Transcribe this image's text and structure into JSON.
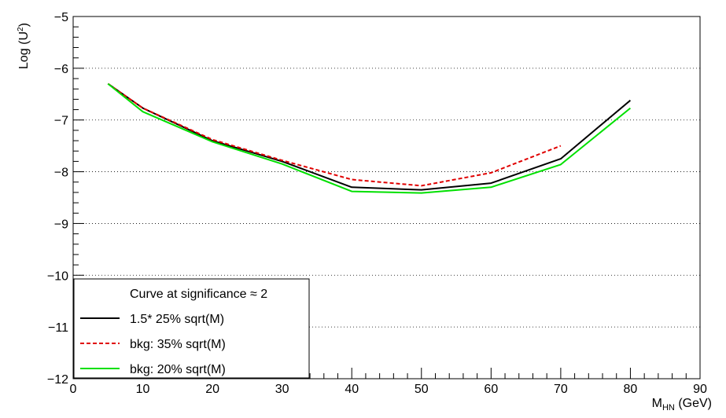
{
  "chart_data": {
    "type": "line",
    "title": "",
    "xlabel_main": "M",
    "xlabel_sub": "HN",
    "xlabel_unit": " (GeV)",
    "ylabel_main": "Log (U",
    "ylabel_sup": "2",
    "ylabel_end": ")",
    "xlim": [
      0,
      90
    ],
    "ylim": [
      -12,
      -5
    ],
    "x_ticks": [
      0,
      10,
      20,
      30,
      40,
      50,
      60,
      70,
      80,
      90
    ],
    "y_ticks": [
      -12,
      -11,
      -10,
      -9,
      -8,
      -7,
      -6,
      -5
    ],
    "x_tick_labels": [
      "0",
      "10",
      "20",
      "30",
      "40",
      "50",
      "60",
      "70",
      "80",
      "90"
    ],
    "y_tick_labels": [
      "−12",
      "−11",
      "−10",
      "−9",
      "−8",
      "−7",
      "−6",
      "−5"
    ],
    "grid": "horizontal-dotted",
    "legend_position": "bottom-left",
    "legend_title": "Curve at significance ≈ 2",
    "series": [
      {
        "name": "1.5* 25% sqrt(M)",
        "color": "#000000",
        "dash": "solid",
        "x": [
          5,
          10,
          20,
          30,
          40,
          50,
          60,
          70,
          80
        ],
        "y": [
          -6.3,
          -6.77,
          -7.4,
          -7.8,
          -8.3,
          -8.35,
          -8.22,
          -7.75,
          -6.62
        ]
      },
      {
        "name": "bkg: 35% sqrt(M)",
        "color": "#e00000",
        "dash": "dashed",
        "x": [
          5,
          10,
          20,
          30,
          40,
          50,
          60,
          70
        ],
        "y": [
          -6.3,
          -6.77,
          -7.38,
          -7.78,
          -8.15,
          -8.27,
          -8.02,
          -7.5
        ]
      },
      {
        "name": "bkg: 20% sqrt(M)",
        "color": "#00e000",
        "dash": "solid",
        "x": [
          5,
          10,
          20,
          30,
          40,
          50,
          60,
          70,
          80
        ],
        "y": [
          -6.3,
          -6.84,
          -7.42,
          -7.85,
          -8.38,
          -8.41,
          -8.3,
          -7.86,
          -6.77
        ]
      }
    ]
  }
}
